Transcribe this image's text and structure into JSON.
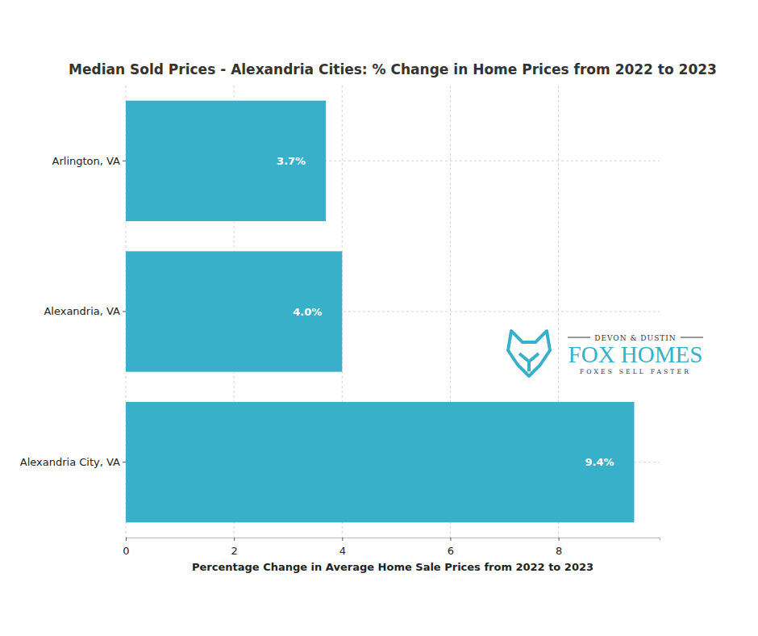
{
  "chart_data": {
    "type": "bar",
    "orientation": "horizontal",
    "title": "Median Sold Prices - Alexandria Cities: % Change in Home Prices from 2022 to 2023",
    "x_label": "Percentage Change in Average Home Sale Prices from 2022 to 2023",
    "categories": [
      "Arlington, VA",
      "Alexandria, VA",
      "Alexandria City, VA"
    ],
    "values": [
      3.7,
      4.0,
      9.4
    ],
    "value_labels": [
      "3.7%",
      "4.0%",
      "9.4%"
    ],
    "data_labels": true,
    "color": "#38b0c9",
    "xlim": [
      0,
      9.87
    ],
    "xticks": [
      0,
      2,
      4,
      6,
      8
    ],
    "grid": true,
    "annotations": [
      "DEVON & DUSTIN",
      "FOX HOMES",
      "FOXES SELL FASTER"
    ]
  }
}
